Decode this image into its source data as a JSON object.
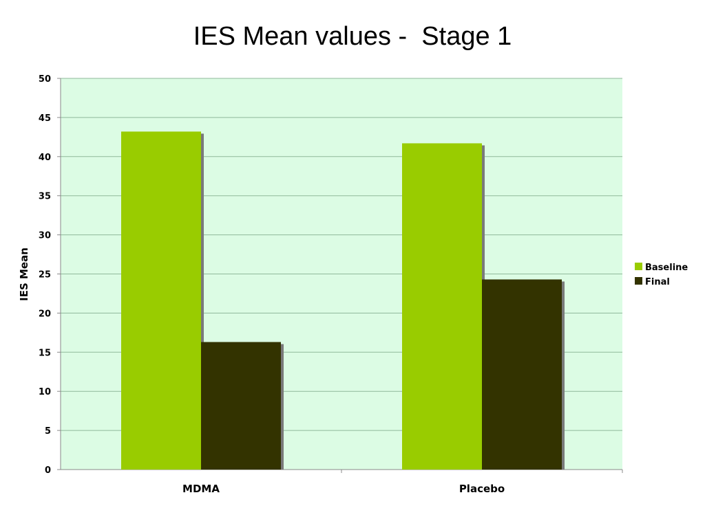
{
  "chart_data": {
    "type": "bar",
    "title": "IES Mean values -  Stage 1",
    "xlabel": "",
    "ylabel": "IES Mean",
    "categories": [
      "MDMA",
      "Placebo"
    ],
    "series": [
      {
        "name": "Baseline",
        "values": [
          43.2,
          41.7
        ],
        "color": "#99cc00"
      },
      {
        "name": "Final",
        "values": [
          16.3,
          24.3
        ],
        "color": "#333300"
      }
    ],
    "ylim": [
      0,
      50
    ],
    "yticks": [
      0,
      5,
      10,
      15,
      20,
      25,
      30,
      35,
      40,
      45,
      50
    ],
    "grid": true,
    "legend_position": "right",
    "plot_background": "#dcfce4",
    "gridline_color": "#8fb89a"
  }
}
